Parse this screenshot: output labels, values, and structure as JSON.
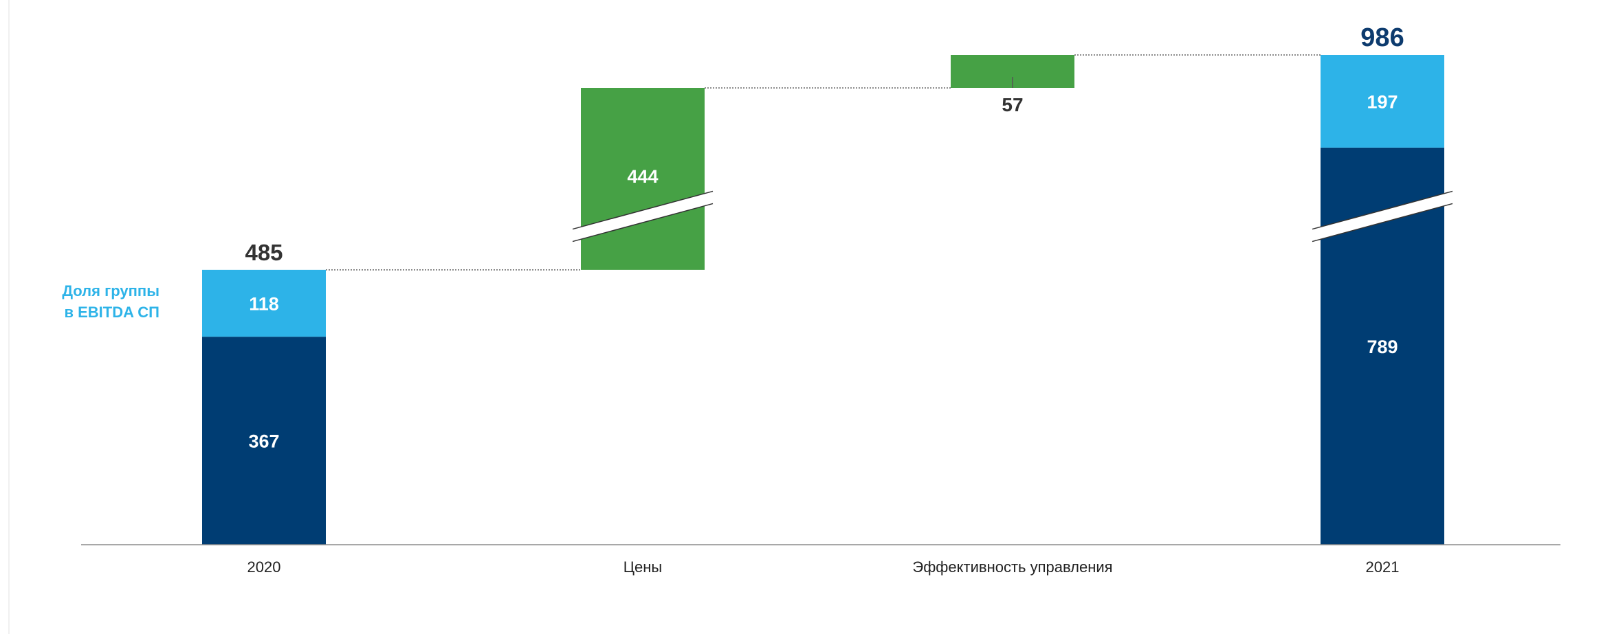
{
  "colors": {
    "dark_blue": "#003d73",
    "light_blue": "#2db3e8",
    "green": "#46a145",
    "axis": "#8c8c8c",
    "connector": "#666666",
    "total_2020": "#333333",
    "total_2021": "#0d3b6e",
    "delta_label": "#333333"
  },
  "chart_data": {
    "type": "bar",
    "subtype": "waterfall",
    "categories": [
      "2020",
      "Цены",
      "Эффективность управления",
      "2021"
    ],
    "legend_label": "Доля группы в EBITDA СП",
    "legend_lines": [
      "Доля группы",
      "в EBITDA СП"
    ],
    "bars": [
      {
        "category": "2020",
        "kind": "stacked",
        "segments": [
          {
            "value": 367,
            "label": "367"
          },
          {
            "value": 118,
            "label": "118"
          }
        ],
        "total": 485,
        "total_label": "485"
      },
      {
        "category": "Цены",
        "kind": "delta",
        "value": 444,
        "label": "444",
        "axis_break": true
      },
      {
        "category": "Эффективность управления",
        "kind": "delta",
        "value": 57,
        "label": "57"
      },
      {
        "category": "2021",
        "kind": "stacked",
        "segments": [
          {
            "value": 789,
            "label": "789"
          },
          {
            "value": 197,
            "label": "197"
          }
        ],
        "total": 986,
        "total_label": "986",
        "axis_break": true
      }
    ]
  }
}
